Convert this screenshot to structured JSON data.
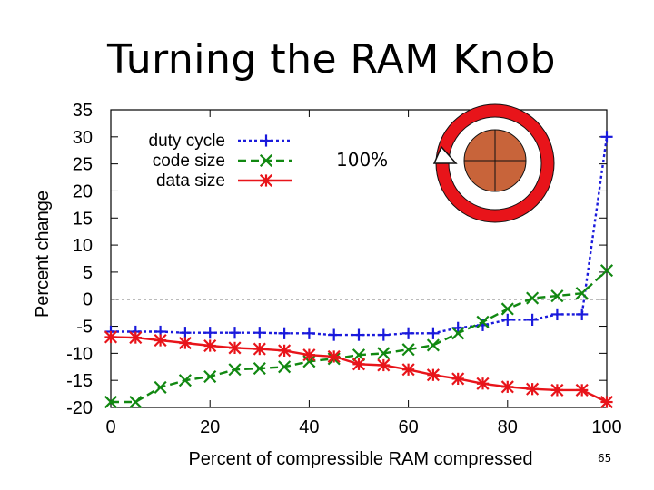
{
  "slide": {
    "title": "Turning the RAM Knob",
    "page_number": "65"
  },
  "knob": {
    "label": "100%",
    "ring_color": "#e8141a",
    "knob_color": "#c8643a"
  },
  "chart_data": {
    "type": "line",
    "xlabel": "Percent of compressible RAM compressed",
    "ylabel": "Percent change",
    "xlim": [
      0,
      100
    ],
    "ylim": [
      -20,
      35
    ],
    "xticks": [
      0,
      20,
      40,
      60,
      80,
      100
    ],
    "yticks": [
      35,
      30,
      25,
      20,
      15,
      10,
      5,
      0,
      -5,
      -10,
      -15,
      -20
    ],
    "grid": false,
    "reference_line": 0,
    "legend_position": "top-left",
    "x": [
      0,
      5,
      10,
      15,
      20,
      25,
      30,
      35,
      40,
      45,
      50,
      55,
      60,
      65,
      70,
      75,
      80,
      85,
      90,
      95,
      100
    ],
    "series": [
      {
        "name": "duty cycle",
        "color": "#1a1adc",
        "style": "dotted",
        "marker": "plus",
        "values": [
          -6,
          -6,
          -6,
          -6.2,
          -6.2,
          -6.2,
          -6.2,
          -6.3,
          -6.3,
          -6.6,
          -6.6,
          -6.6,
          -6.3,
          -6.3,
          -5.3,
          -4.8,
          -3.8,
          -3.8,
          -2.8,
          -2.8,
          30
        ]
      },
      {
        "name": "code size",
        "color": "#118811",
        "style": "dashed",
        "marker": "x",
        "values": [
          -19,
          -19,
          -16.3,
          -15,
          -14.3,
          -13,
          -12.8,
          -12.5,
          -11.5,
          -11,
          -10.3,
          -10,
          -9.3,
          -8.5,
          -6.3,
          -4.2,
          -1.8,
          0.2,
          0.6,
          1.1,
          5.3
        ]
      },
      {
        "name": "data size",
        "color": "#e8141a",
        "style": "solid",
        "marker": "star",
        "values": [
          -7,
          -7.1,
          -7.6,
          -8.1,
          -8.6,
          -9,
          -9.2,
          -9.5,
          -10.3,
          -10.6,
          -12,
          -12.2,
          -13,
          -14,
          -14.7,
          -15.6,
          -16.2,
          -16.6,
          -16.8,
          -16.8,
          -19
        ]
      }
    ]
  }
}
